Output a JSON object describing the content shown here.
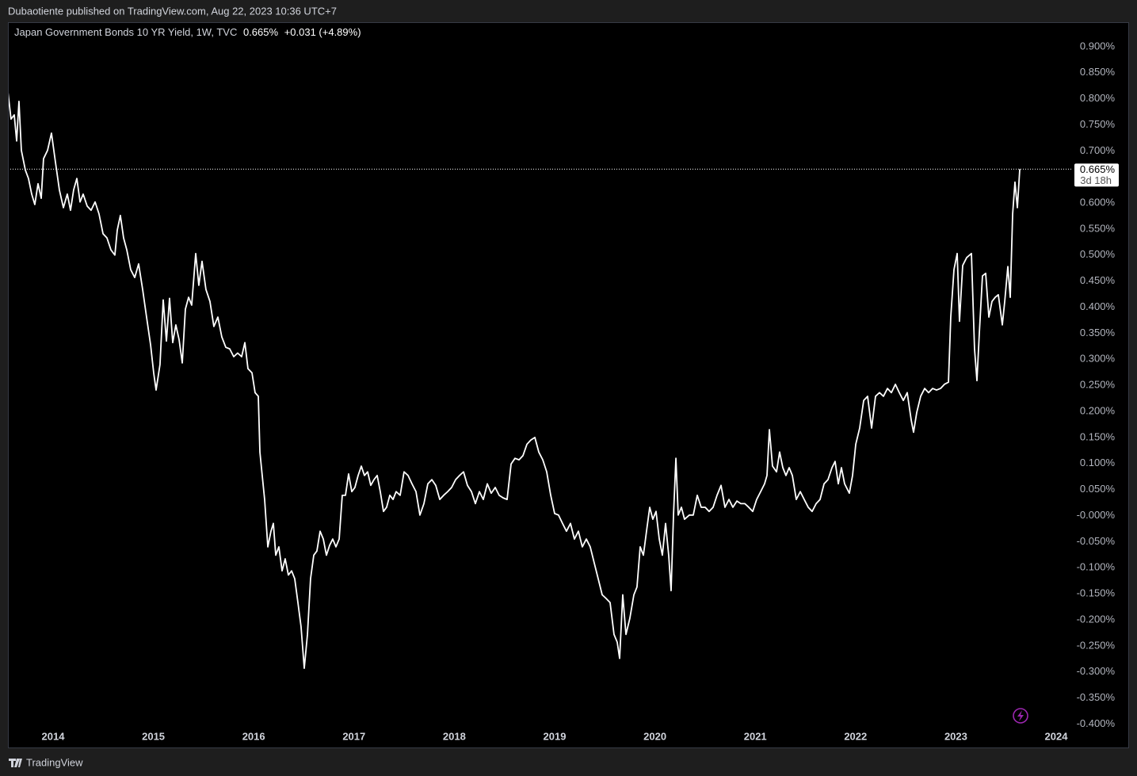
{
  "header": {
    "publisher": "Dubaotiente published on TradingView.com, Aug 22, 2023 10:36 UTC+7"
  },
  "footer": {
    "brand": "TradingView"
  },
  "chart_data": {
    "type": "line",
    "title": "Japan Government Bonds 10 YR Yield, 1W, TVC",
    "last_label": "0.665%",
    "change_label": "+0.031 (+4.89%)",
    "countdown": "3d 18h",
    "color": "#ffffff",
    "x": [
      2013.55,
      2013.581,
      2013.613,
      2013.637,
      2013.66,
      2013.684,
      2013.724,
      2013.755,
      2013.787,
      2013.818,
      2013.85,
      2013.882,
      2013.905,
      2013.945,
      2013.984,
      2014.024,
      2014.063,
      2014.103,
      2014.142,
      2014.174,
      2014.205,
      2014.237,
      2014.269,
      2014.3,
      2014.34,
      2014.379,
      2014.419,
      2014.458,
      2014.498,
      2014.537,
      2014.577,
      2014.616,
      2014.64,
      2014.671,
      2014.703,
      2014.735,
      2014.774,
      2014.814,
      2014.853,
      2014.893,
      2014.932,
      2014.972,
      2015.003,
      2015.027,
      2015.066,
      2015.098,
      2015.13,
      2015.161,
      2015.193,
      2015.224,
      2015.256,
      2015.288,
      2015.319,
      2015.351,
      2015.382,
      2015.422,
      2015.453,
      2015.485,
      2015.524,
      2015.564,
      2015.603,
      2015.643,
      2015.682,
      2015.722,
      2015.761,
      2015.801,
      2015.84,
      2015.88,
      2015.912,
      2015.943,
      2015.983,
      2016.014,
      2016.046,
      2016.062,
      2016.085,
      2016.109,
      2016.141,
      2016.172,
      2016.196,
      2016.22,
      2016.251,
      2016.283,
      2016.314,
      2016.346,
      2016.378,
      2016.409,
      2016.441,
      2016.472,
      2016.504,
      2016.536,
      2016.567,
      2016.599,
      2016.63,
      2016.662,
      2016.694,
      2016.725,
      2016.757,
      2016.788,
      2016.82,
      2016.852,
      2016.883,
      2016.915,
      2016.946,
      2016.978,
      2017.009,
      2017.041,
      2017.073,
      2017.104,
      2017.136,
      2017.167,
      2017.199,
      2017.231,
      2017.262,
      2017.294,
      2017.325,
      2017.357,
      2017.389,
      2017.42,
      2017.46,
      2017.499,
      2017.539,
      2017.578,
      2017.618,
      2017.657,
      2017.697,
      2017.736,
      2017.776,
      2017.815,
      2017.855,
      2017.894,
      2017.934,
      2017.973,
      2018.013,
      2018.052,
      2018.092,
      2018.131,
      2018.171,
      2018.21,
      2018.25,
      2018.289,
      2018.329,
      2018.368,
      2018.408,
      2018.447,
      2018.487,
      2018.526,
      2018.566,
      2018.605,
      2018.645,
      2018.684,
      2018.724,
      2018.763,
      2018.803,
      2018.842,
      2018.882,
      2018.921,
      2018.961,
      2019.0,
      2019.039,
      2019.079,
      2019.118,
      2019.158,
      2019.197,
      2019.237,
      2019.276,
      2019.316,
      2019.355,
      2019.395,
      2019.434,
      2019.474,
      2019.513,
      2019.553,
      2019.592,
      2019.624,
      2019.648,
      2019.679,
      2019.711,
      2019.75,
      2019.79,
      2019.821,
      2019.853,
      2019.885,
      2019.916,
      2019.948,
      2019.979,
      2020.011,
      2020.043,
      2020.074,
      2020.106,
      2020.137,
      2020.161,
      2020.185,
      2020.209,
      2020.232,
      2020.264,
      2020.295,
      2020.343,
      2020.382,
      2020.422,
      2020.461,
      2020.501,
      2020.54,
      2020.58,
      2020.619,
      2020.659,
      2020.698,
      2020.738,
      2020.777,
      2020.817,
      2020.856,
      2020.896,
      2020.935,
      2020.975,
      2021.014,
      2021.054,
      2021.093,
      2021.117,
      2021.141,
      2021.172,
      2021.212,
      2021.243,
      2021.275,
      2021.306,
      2021.338,
      2021.37,
      2021.409,
      2021.449,
      2021.488,
      2021.528,
      2021.567,
      2021.607,
      2021.646,
      2021.686,
      2021.725,
      2021.765,
      2021.796,
      2021.828,
      2021.859,
      2021.891,
      2021.938,
      2021.97,
      2022.002,
      2022.041,
      2022.081,
      2022.12,
      2022.16,
      2022.199,
      2022.239,
      2022.278,
      2022.318,
      2022.357,
      2022.397,
      2022.436,
      2022.476,
      2022.515,
      2022.555,
      2022.578,
      2022.61,
      2022.649,
      2022.689,
      2022.728,
      2022.768,
      2022.807,
      2022.847,
      2022.886,
      2022.926,
      2022.949,
      2022.981,
      2023.013,
      2023.036,
      2023.068,
      2023.107,
      2023.155,
      2023.186,
      2023.21,
      2023.234,
      2023.265,
      2023.297,
      2023.329,
      2023.36,
      2023.392,
      2023.423,
      2023.463,
      2023.487,
      2023.518,
      2023.542,
      2023.566,
      2023.589,
      2023.613,
      2023.637
    ],
    "values": [
      0.813,
      0.761,
      0.769,
      0.719,
      0.795,
      0.701,
      0.663,
      0.647,
      0.617,
      0.597,
      0.637,
      0.609,
      0.685,
      0.701,
      0.734,
      0.678,
      0.625,
      0.591,
      0.617,
      0.586,
      0.625,
      0.647,
      0.602,
      0.617,
      0.594,
      0.586,
      0.602,
      0.579,
      0.541,
      0.533,
      0.51,
      0.5,
      0.548,
      0.576,
      0.533,
      0.51,
      0.472,
      0.457,
      0.483,
      0.434,
      0.381,
      0.328,
      0.274,
      0.241,
      0.29,
      0.414,
      0.335,
      0.417,
      0.332,
      0.366,
      0.338,
      0.293,
      0.396,
      0.419,
      0.404,
      0.503,
      0.442,
      0.488,
      0.434,
      0.411,
      0.363,
      0.381,
      0.343,
      0.323,
      0.32,
      0.305,
      0.312,
      0.305,
      0.332,
      0.282,
      0.274,
      0.236,
      0.229,
      0.122,
      0.077,
      0.031,
      -0.06,
      -0.03,
      -0.015,
      -0.076,
      -0.06,
      -0.106,
      -0.083,
      -0.114,
      -0.106,
      -0.121,
      -0.167,
      -0.213,
      -0.293,
      -0.228,
      -0.121,
      -0.076,
      -0.068,
      -0.03,
      -0.045,
      -0.076,
      -0.057,
      -0.045,
      -0.06,
      -0.045,
      0.039,
      0.039,
      0.08,
      0.046,
      0.054,
      0.077,
      0.095,
      0.077,
      0.084,
      0.058,
      0.069,
      0.077,
      0.046,
      0.008,
      0.016,
      0.039,
      0.031,
      0.046,
      0.039,
      0.084,
      0.077,
      0.061,
      0.046,
      0.001,
      0.023,
      0.061,
      0.069,
      0.058,
      0.031,
      0.039,
      0.046,
      0.054,
      0.069,
      0.077,
      0.084,
      0.058,
      0.046,
      0.023,
      0.046,
      0.031,
      0.061,
      0.043,
      0.054,
      0.039,
      0.034,
      0.031,
      0.099,
      0.11,
      0.107,
      0.115,
      0.137,
      0.145,
      0.15,
      0.122,
      0.107,
      0.084,
      0.039,
      0.004,
      0.001,
      -0.015,
      -0.03,
      -0.015,
      -0.045,
      -0.03,
      -0.06,
      -0.045,
      -0.06,
      -0.091,
      -0.121,
      -0.152,
      -0.159,
      -0.167,
      -0.228,
      -0.243,
      -0.274,
      -0.152,
      -0.228,
      -0.197,
      -0.152,
      -0.137,
      -0.06,
      -0.076,
      -0.03,
      0.016,
      -0.007,
      0.008,
      -0.045,
      -0.076,
      -0.015,
      -0.076,
      -0.144,
      0.001,
      0.11,
      0.001,
      0.016,
      -0.007,
      0.001,
      0.001,
      0.039,
      0.016,
      0.016,
      0.008,
      0.016,
      0.039,
      0.058,
      0.016,
      0.031,
      0.016,
      0.028,
      0.023,
      0.023,
      0.016,
      0.008,
      0.031,
      0.046,
      0.061,
      0.077,
      0.165,
      0.095,
      0.084,
      0.122,
      0.092,
      0.077,
      0.092,
      0.077,
      0.031,
      0.046,
      0.031,
      0.016,
      0.008,
      0.023,
      0.031,
      0.061,
      0.069,
      0.092,
      0.104,
      0.061,
      0.092,
      0.061,
      0.043,
      0.077,
      0.137,
      0.168,
      0.221,
      0.229,
      0.168,
      0.229,
      0.236,
      0.229,
      0.244,
      0.236,
      0.252,
      0.236,
      0.221,
      0.236,
      0.183,
      0.16,
      0.198,
      0.229,
      0.244,
      0.236,
      0.244,
      0.241,
      0.244,
      0.252,
      0.256,
      0.381,
      0.472,
      0.503,
      0.373,
      0.48,
      0.495,
      0.503,
      0.32,
      0.259,
      0.351,
      0.46,
      0.465,
      0.381,
      0.411,
      0.419,
      0.424,
      0.366,
      0.411,
      0.478,
      0.419,
      0.579,
      0.64,
      0.591,
      0.665
    ],
    "xlim": [
      2013.55,
      2024.15
    ],
    "xticks": [
      2014,
      2015,
      2016,
      2017,
      2018,
      2019,
      2020,
      2021,
      2022,
      2023,
      2024
    ],
    "ylim": [
      -0.41,
      0.95
    ],
    "yticks": [
      {
        "value": 0.9,
        "label": "0.900%"
      },
      {
        "value": 0.85,
        "label": "0.850%"
      },
      {
        "value": 0.8,
        "label": "0.800%"
      },
      {
        "value": 0.75,
        "label": "0.750%"
      },
      {
        "value": 0.7,
        "label": "0.700%"
      },
      {
        "value": 0.6,
        "label": "0.600%"
      },
      {
        "value": 0.55,
        "label": "0.550%"
      },
      {
        "value": 0.5,
        "label": "0.500%"
      },
      {
        "value": 0.45,
        "label": "0.450%"
      },
      {
        "value": 0.4,
        "label": "0.400%"
      },
      {
        "value": 0.35,
        "label": "0.350%"
      },
      {
        "value": 0.3,
        "label": "0.300%"
      },
      {
        "value": 0.25,
        "label": "0.250%"
      },
      {
        "value": 0.2,
        "label": "0.200%"
      },
      {
        "value": 0.15,
        "label": "0.150%"
      },
      {
        "value": 0.1,
        "label": "0.100%"
      },
      {
        "value": 0.05,
        "label": "0.050%"
      },
      {
        "value": 0,
        "label": "-0.000%"
      },
      {
        "value": -0.05,
        "label": "-0.050%"
      },
      {
        "value": -0.1,
        "label": "-0.100%"
      },
      {
        "value": -0.15,
        "label": "-0.150%"
      },
      {
        "value": -0.2,
        "label": "-0.200%"
      },
      {
        "value": -0.25,
        "label": "-0.250%"
      },
      {
        "value": -0.3,
        "label": "-0.300%"
      },
      {
        "value": -0.35,
        "label": "-0.350%"
      },
      {
        "value": -0.4,
        "label": "-0.400%"
      }
    ]
  }
}
